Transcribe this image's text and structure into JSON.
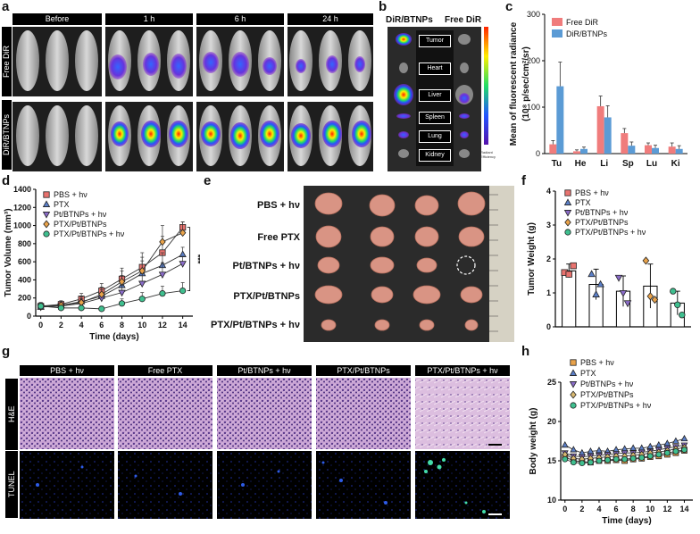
{
  "panels": {
    "a": {
      "letter": "a",
      "col_headers": [
        "Before",
        "1 h",
        "6 h",
        "24 h"
      ],
      "row_labels": [
        "Free DiR",
        "DiR/BTNPs"
      ]
    },
    "b": {
      "letter": "b",
      "left_title": "DiR/BTNPs",
      "right_title": "Free DiR",
      "organs": [
        "Tumor",
        "Heart",
        "Liver",
        "Spleen",
        "Lung",
        "Kidney"
      ],
      "scale_text": "Radiant Efficiency"
    },
    "e": {
      "letter": "e",
      "groups": [
        "PBS + hν",
        "Free PTX",
        "Pt/BTNPs + hν",
        "PTX/Pt/BTNPs",
        "PTX/Pt/BTNPs + hν"
      ]
    },
    "g": {
      "letter": "g",
      "col_headers": [
        "PBS + hν",
        "Free PTX",
        "Pt/BTNPs + hν",
        "PTX/Pt/BTNPs",
        "PTX/Pt/BTNPs + hν"
      ],
      "row_labels": [
        "H&E",
        "TUNEL"
      ]
    }
  },
  "chart_data": [
    {
      "id": "c",
      "letter": "c",
      "type": "bar",
      "ylabel": "Mean of fluorescent radiance",
      "ylabel2": "(10⁸ p/sec/cm²/sr)",
      "categories": [
        "Tu",
        "He",
        "Li",
        "Sp",
        "Lu",
        "Ki"
      ],
      "ylim": [
        0,
        300
      ],
      "yticks": [
        0,
        100,
        200,
        300
      ],
      "series": [
        {
          "name": "Free DiR",
          "color": "#f07c7c",
          "values": [
            20,
            5,
            102,
            44,
            18,
            15
          ],
          "errors": [
            8,
            3,
            22,
            10,
            5,
            8
          ]
        },
        {
          "name": "DiR/BTNPs",
          "color": "#5b9bd5",
          "values": [
            145,
            10,
            78,
            17,
            12,
            10
          ],
          "errors": [
            52,
            4,
            25,
            8,
            6,
            7
          ]
        }
      ]
    },
    {
      "id": "d",
      "letter": "d",
      "type": "line",
      "ylabel": "Tumor Volume (mm³)",
      "xlabel": "Time (days)",
      "x": [
        0,
        2,
        4,
        6,
        8,
        10,
        12,
        14
      ],
      "xlim": [
        -0.5,
        15
      ],
      "ylim": [
        0,
        1400
      ],
      "yticks": [
        0,
        200,
        400,
        600,
        800,
        1000,
        1200,
        1400
      ],
      "xticks": [
        0,
        2,
        4,
        6,
        8,
        10,
        12,
        14
      ],
      "annotation": "***",
      "series": [
        {
          "name": "PBS + hν",
          "marker": "square",
          "color": "#e8736f",
          "values": [
            110,
            130,
            190,
            280,
            410,
            540,
            700,
            980
          ],
          "errors": [
            40,
            40,
            60,
            80,
            120,
            160,
            180,
            60
          ]
        },
        {
          "name": "PTX",
          "marker": "triangle-up",
          "color": "#5b7fc8",
          "values": [
            100,
            120,
            160,
            220,
            340,
            470,
            560,
            680
          ],
          "errors": [
            40,
            40,
            60,
            70,
            110,
            140,
            140,
            80
          ]
        },
        {
          "name": "Pt/BTNPs + hν",
          "marker": "triangle-down",
          "color": "#8a6cc8",
          "values": [
            100,
            110,
            140,
            200,
            260,
            360,
            460,
            580
          ],
          "errors": [
            40,
            40,
            50,
            60,
            80,
            110,
            130,
            80
          ]
        },
        {
          "name": "PTX/Pt/BTNPs",
          "marker": "diamond",
          "color": "#e8a24a",
          "values": [
            110,
            120,
            150,
            240,
            380,
            500,
            820,
            920
          ],
          "errors": [
            40,
            40,
            60,
            80,
            120,
            150,
            180,
            120
          ]
        },
        {
          "name": "PTX/Pt/BTNPs + hν",
          "marker": "circle",
          "color": "#3fbf8f",
          "values": [
            110,
            90,
            90,
            80,
            140,
            190,
            250,
            280
          ],
          "errors": [
            40,
            30,
            30,
            30,
            50,
            70,
            80,
            90
          ]
        }
      ]
    },
    {
      "id": "f",
      "letter": "f",
      "type": "bar",
      "ylabel": "Tumor Weight  (g)",
      "ylim": [
        0,
        4
      ],
      "yticks": [
        0,
        1,
        2,
        3,
        4
      ],
      "series": [
        {
          "name": "PBS + hν",
          "marker": "square",
          "color": "#e8736f",
          "value": 1.65,
          "error": 0.2,
          "points": [
            1.6,
            1.55,
            1.8
          ]
        },
        {
          "name": "PTX",
          "marker": "triangle-up",
          "color": "#5b7fc8",
          "value": 1.25,
          "error": 0.45,
          "points": [
            1.55,
            0.95,
            1.25
          ]
        },
        {
          "name": "Pt/BTNPs + hν",
          "marker": "triangle-down",
          "color": "#8a6cc8",
          "value": 1.05,
          "error": 0.45,
          "points": [
            1.45,
            1.0,
            0.7
          ]
        },
        {
          "name": "PTX/Pt/BTNPs",
          "marker": "diamond",
          "color": "#e8a24a",
          "value": 1.2,
          "error": 0.65,
          "points": [
            1.95,
            0.9,
            0.8
          ]
        },
        {
          "name": "PTX/Pt/BTNPs + hν",
          "marker": "circle",
          "color": "#3fbf8f",
          "value": 0.7,
          "error": 0.35,
          "points": [
            1.05,
            0.65,
            0.35
          ]
        }
      ]
    },
    {
      "id": "h",
      "letter": "h",
      "type": "line",
      "ylabel": "Body weight (g)",
      "xlabel": "Time (days)",
      "x": [
        0,
        1,
        2,
        3,
        4,
        5,
        6,
        7,
        8,
        9,
        10,
        11,
        12,
        13,
        14
      ],
      "xticks": [
        0,
        2,
        4,
        6,
        8,
        10,
        12,
        14
      ],
      "xlim": [
        -0.5,
        15
      ],
      "ylim": [
        10,
        25
      ],
      "yticks": [
        10,
        15,
        20,
        25
      ],
      "series": [
        {
          "name": "PBS + hν",
          "marker": "square",
          "color": "#e8a24a",
          "values": [
            15.5,
            15.0,
            14.9,
            14.8,
            15.0,
            15.0,
            15.1,
            15.0,
            15.2,
            15.3,
            15.5,
            15.6,
            15.8,
            16.0,
            16.3
          ]
        },
        {
          "name": "PTX",
          "marker": "triangle-up",
          "color": "#5b7fc8",
          "values": [
            17.0,
            16.4,
            16.0,
            16.2,
            16.3,
            16.2,
            16.4,
            16.5,
            16.6,
            16.6,
            16.8,
            17.0,
            17.2,
            17.5,
            17.8
          ]
        },
        {
          "name": "Pt/BTNPs + hν",
          "marker": "triangle-down",
          "color": "#8a6cc8",
          "values": [
            16.0,
            15.6,
            15.5,
            15.6,
            15.7,
            15.8,
            15.9,
            16.0,
            16.0,
            16.1,
            16.2,
            16.4,
            16.6,
            16.8,
            17.0
          ]
        },
        {
          "name": "PTX/Pt/BTNPs",
          "marker": "diamond",
          "color": "#d8b870",
          "values": [
            15.8,
            15.3,
            15.2,
            15.3,
            15.4,
            15.5,
            15.6,
            15.6,
            15.7,
            15.8,
            16.0,
            16.1,
            16.3,
            16.5,
            16.7
          ]
        },
        {
          "name": "PTX/Pt/BTNPs +  hν",
          "marker": "circle",
          "color": "#3fbf8f",
          "values": [
            15.2,
            14.8,
            14.7,
            14.8,
            15.0,
            15.1,
            15.2,
            15.2,
            15.3,
            15.4,
            15.6,
            15.8,
            16.0,
            16.2,
            16.4
          ]
        }
      ]
    }
  ]
}
